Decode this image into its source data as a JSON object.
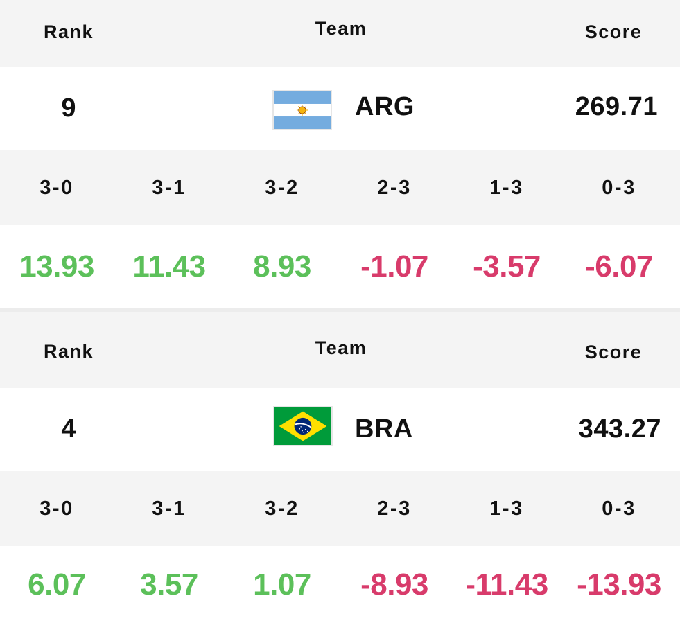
{
  "cards": [
    {
      "header": {
        "rank_label": "Rank",
        "team_label": "Team",
        "score_label": "Score"
      },
      "team": {
        "rank": "9",
        "code": "ARG",
        "flag_icon": "argentina-flag-icon",
        "score": "269.71"
      },
      "results": [
        {
          "label": "3-0",
          "value": "13.93",
          "trend": "positive"
        },
        {
          "label": "3-1",
          "value": "11.43",
          "trend": "positive"
        },
        {
          "label": "3-2",
          "value": "8.93",
          "trend": "positive"
        },
        {
          "label": "2-3",
          "value": "-1.07",
          "trend": "negative"
        },
        {
          "label": "1-3",
          "value": "-3.57",
          "trend": "negative"
        },
        {
          "label": "0-3",
          "value": "-6.07",
          "trend": "negative"
        }
      ]
    },
    {
      "header": {
        "rank_label": "Rank",
        "team_label": "Team",
        "score_label": "Score"
      },
      "team": {
        "rank": "4",
        "code": "BRA",
        "flag_icon": "brazil-flag-icon",
        "score": "343.27"
      },
      "results": [
        {
          "label": "3-0",
          "value": "6.07",
          "trend": "positive"
        },
        {
          "label": "3-1",
          "value": "3.57",
          "trend": "positive"
        },
        {
          "label": "3-2",
          "value": "1.07",
          "trend": "positive"
        },
        {
          "label": "2-3",
          "value": "-8.93",
          "trend": "negative"
        },
        {
          "label": "1-3",
          "value": "-11.43",
          "trend": "negative"
        },
        {
          "label": "0-3",
          "value": "-13.93",
          "trend": "negative"
        }
      ]
    }
  ],
  "colors": {
    "positive": "#5cc05a",
    "negative": "#d83b6b",
    "header_bg": "#f4f4f4",
    "row_bg": "#ffffff"
  }
}
